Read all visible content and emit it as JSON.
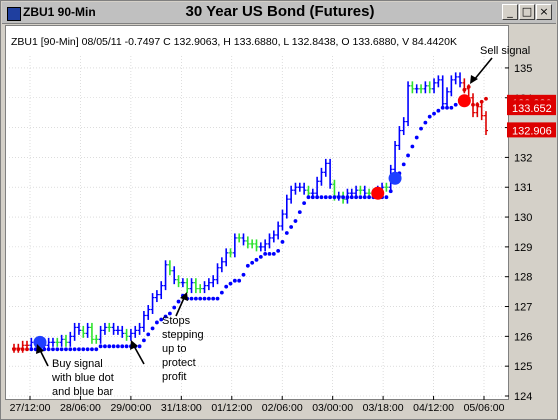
{
  "window": {
    "symbol": "ZBU1 90-Min",
    "title": "30 Year US Bond (Futures)",
    "buttons": [
      "_",
      "□",
      "×"
    ]
  },
  "info_line": "ZBU1 [90-Min] 08/05/11 -0.7497 C 132.9063, H 133.6880, L 132.8438, O 133.6880, V 84.4420K",
  "annotations": {
    "sell": "Sell signal",
    "buy": [
      "Buy signal",
      "with blue dot",
      "and blue bar"
    ],
    "stops": [
      "Stops",
      "stepping",
      "up to",
      "protect",
      "profit"
    ]
  },
  "price_tags": [
    {
      "text": "133.830",
      "value": 133.83,
      "bg": "#dd0000"
    },
    {
      "text": "133.652",
      "value": 133.652,
      "bg": "#dd0000"
    },
    {
      "text": "132.906",
      "value": 132.906,
      "bg": "#dd0000"
    }
  ],
  "colors": {
    "up_bar": "#0000ff",
    "neutral_bar": "#2ee22e",
    "down_bar": "#dd0000",
    "stop_dots": "#0000ff",
    "buy_signal": "#1f3fff",
    "sell_signal": "#ff0000"
  },
  "chart_data": {
    "type": "line",
    "title": "30 Year US Bond (Futures)",
    "xlabel": "",
    "ylabel": "",
    "x_ticks": [
      "27/12:00",
      "28/06:00",
      "29/00:00",
      "31/18:00",
      "01/12:00",
      "02/06:00",
      "03/00:00",
      "03/18:00",
      "04/12:00",
      "05/06:00"
    ],
    "y_ticks": [
      124,
      125,
      126,
      127,
      128,
      129,
      130,
      131,
      132,
      133,
      134,
      135
    ],
    "ylim": [
      124,
      135.4
    ],
    "grid": true,
    "series": [
      {
        "style": "bars",
        "values": [
          125.6,
          125.6,
          125.7,
          125.7,
          125.8,
          125.8,
          125.8,
          125.7,
          125.8,
          125.8,
          125.8,
          125.9,
          125.8,
          126.0,
          126.3,
          126.2,
          126.1,
          126.3,
          125.9,
          125.9,
          126.2,
          126.3,
          126.3,
          126.2,
          126.2,
          126.1,
          126.0,
          126.1,
          126.2,
          126.3,
          126.7,
          126.9,
          127.3,
          127.4,
          127.7,
          128.4,
          128.2,
          127.9,
          127.8,
          127.8,
          127.6,
          127.8,
          127.6,
          127.6,
          127.7,
          127.8,
          127.9,
          128.3,
          128.5,
          128.8,
          128.8,
          129.3,
          129.3,
          129.2,
          129.1,
          129.1,
          129.0,
          129.0,
          129.1,
          129.3,
          129.4,
          129.7,
          130.1,
          130.6,
          130.9,
          131.0,
          131.0,
          130.9,
          130.8,
          130.8,
          131.2,
          131.5,
          131.8,
          131.1,
          130.7,
          130.7,
          130.6,
          130.8,
          130.8,
          130.9,
          130.9,
          130.8,
          130.8,
          130.8,
          130.9,
          131.0,
          131.0,
          131.6,
          132.4,
          132.9,
          133.2,
          134.4,
          134.3,
          134.3,
          134.3,
          134.4,
          134.3,
          134.5,
          134.6,
          133.8,
          134.2,
          134.6,
          134.7,
          134.5,
          134.3,
          134.0,
          133.5,
          133.7,
          133.4,
          132.9
        ]
      },
      {
        "style": "dots",
        "values": [
          125.7,
          125.7,
          125.7,
          125.7,
          125.7,
          125.7,
          125.7,
          125.7,
          125.7,
          125.7,
          125.7,
          125.7,
          125.7,
          125.7,
          125.7,
          125.7,
          125.7,
          125.7,
          125.7,
          125.7,
          125.8,
          125.8,
          125.8,
          125.8,
          125.8,
          125.8,
          125.8,
          125.8,
          125.8,
          125.8,
          126.0,
          126.2,
          126.4,
          126.6,
          126.7,
          126.8,
          126.9,
          127.1,
          127.3,
          127.5,
          127.4,
          127.4,
          127.4,
          127.4,
          127.4,
          127.4,
          127.4,
          127.4,
          127.6,
          127.8,
          127.9,
          128.0,
          128.0,
          128.2,
          128.5,
          128.6,
          128.7,
          128.8,
          128.9,
          128.9,
          128.9,
          129.0,
          129.3,
          129.6,
          129.8,
          130.0,
          130.3,
          130.6,
          130.8,
          130.8,
          130.8,
          130.8,
          130.8,
          130.8,
          130.8,
          130.8,
          130.8,
          130.8,
          130.8,
          130.8,
          130.8,
          130.8,
          130.8,
          130.8,
          130.8,
          130.8,
          130.8,
          131.0,
          131.3,
          131.6,
          131.9,
          132.2,
          132.5,
          132.8,
          133.1,
          133.3,
          133.5,
          133.6,
          133.7,
          133.8,
          133.8,
          133.8,
          133.9,
          134.0,
          134.4,
          134.5,
          133.9,
          133.9,
          134.0,
          134.1
        ]
      }
    ],
    "signals": [
      {
        "type": "buy",
        "x_index": 6,
        "value": 125.8
      },
      {
        "type": "sell",
        "x_index": 104,
        "value": 133.9
      },
      {
        "type": "buy",
        "x_index": 88,
        "value": 131.3
      },
      {
        "type": "sell",
        "x_index": 84,
        "value": 130.8
      }
    ]
  }
}
